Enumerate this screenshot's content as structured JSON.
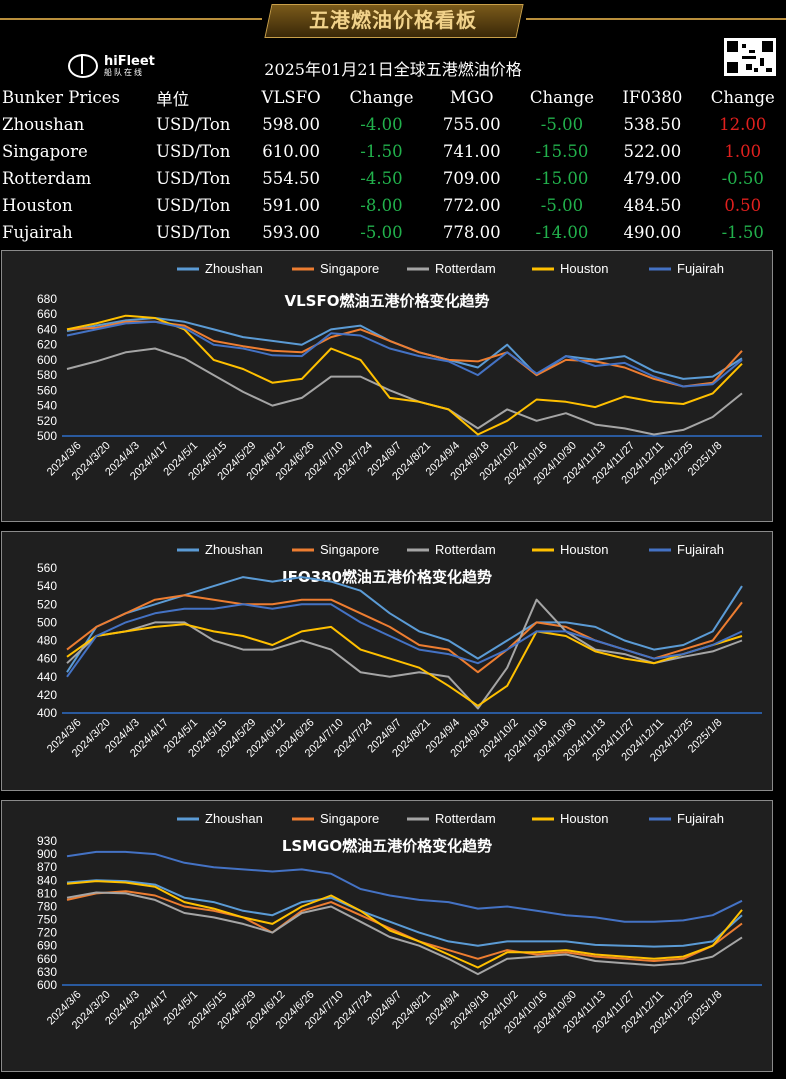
{
  "header": {
    "title": "五港燃油价格看板"
  },
  "logo": {
    "name": "hiFleet",
    "sub": "船队在线"
  },
  "table": {
    "title": "2025年01月21日全球五港燃油价格",
    "headers": [
      "Bunker Prices",
      "单位",
      "VLSFO",
      "Change",
      "MGO",
      "Change",
      "IF0380",
      "Change"
    ],
    "rows": [
      {
        "port": "Zhoushan",
        "unit": "USD/Ton",
        "vlsfo": "598.00",
        "vlsfo_chg": "-4.00",
        "mgo": "755.00",
        "mgo_chg": "-5.00",
        "ifo": "538.50",
        "ifo_chg": "12.00"
      },
      {
        "port": "Singapore",
        "unit": "USD/Ton",
        "vlsfo": "610.00",
        "vlsfo_chg": "-1.50",
        "mgo": "741.00",
        "mgo_chg": "-15.50",
        "ifo": "522.00",
        "ifo_chg": "1.00"
      },
      {
        "port": "Rotterdam",
        "unit": "USD/Ton",
        "vlsfo": "554.50",
        "vlsfo_chg": "-4.50",
        "mgo": "709.00",
        "mgo_chg": "-15.00",
        "ifo": "479.00",
        "ifo_chg": "-0.50"
      },
      {
        "port": "Houston",
        "unit": "USD/Ton",
        "vlsfo": "591.00",
        "vlsfo_chg": "-8.00",
        "mgo": "772.00",
        "mgo_chg": "-5.00",
        "ifo": "484.50",
        "ifo_chg": "0.50"
      },
      {
        "port": "Fujairah",
        "unit": "USD/Ton",
        "vlsfo": "593.00",
        "vlsfo_chg": "-5.00",
        "mgo": "778.00",
        "mgo_chg": "-14.00",
        "ifo": "490.00",
        "ifo_chg": "-1.50"
      }
    ]
  },
  "colors": {
    "Zhoushan": "#5b9bd5",
    "Singapore": "#ed7d31",
    "Rotterdam": "#a5a5a5",
    "Houston": "#ffc000",
    "Fujairah": "#4472c4",
    "gain": "#e0201e",
    "loss": "#22b14c"
  },
  "chart_data": [
    {
      "type": "line",
      "title": "VLSFO燃油五港价格变化趋势",
      "xlabel": "",
      "ylabel": "",
      "ylim": [
        500,
        680
      ],
      "yticks": [
        500,
        520,
        540,
        560,
        580,
        600,
        620,
        640,
        660,
        680
      ],
      "x_ticks": [
        "2024/3/6",
        "2024/3/20",
        "2024/4/3",
        "2024/4/17",
        "2024/5/1",
        "2024/5/15",
        "2024/5/29",
        "2024/6/12",
        "2024/6/26",
        "2024/7/10",
        "2024/7/24",
        "2024/8/7",
        "2024/8/21",
        "2024/9/4",
        "2024/9/18",
        "2024/10/2",
        "2024/10/16",
        "2024/10/30",
        "2024/11/13",
        "2024/11/27",
        "2024/12/11",
        "2024/12/25",
        "2025/1/8"
      ],
      "legend": "top",
      "grid": false,
      "series": [
        {
          "name": "Zhoushan",
          "values": [
            638,
            645,
            652,
            655,
            650,
            640,
            630,
            625,
            620,
            640,
            645,
            625,
            610,
            600,
            590,
            620,
            580,
            605,
            600,
            605,
            585,
            575,
            578,
            602
          ]
        },
        {
          "name": "Singapore",
          "values": [
            640,
            642,
            650,
            650,
            645,
            625,
            618,
            612,
            610,
            630,
            640,
            625,
            610,
            600,
            598,
            610,
            580,
            600,
            598,
            590,
            575,
            565,
            570,
            612
          ]
        },
        {
          "name": "Rotterdam",
          "values": [
            588,
            598,
            610,
            615,
            602,
            580,
            558,
            540,
            550,
            578,
            578,
            560,
            545,
            535,
            510,
            535,
            520,
            530,
            515,
            510,
            502,
            508,
            525,
            556
          ]
        },
        {
          "name": "Houston",
          "values": [
            640,
            648,
            658,
            655,
            640,
            600,
            588,
            570,
            575,
            615,
            600,
            550,
            545,
            535,
            502,
            520,
            548,
            545,
            538,
            552,
            545,
            542,
            556,
            595
          ]
        },
        {
          "name": "Fujairah",
          "values": [
            632,
            640,
            648,
            650,
            642,
            620,
            615,
            606,
            605,
            635,
            632,
            615,
            605,
            598,
            580,
            610,
            582,
            605,
            592,
            596,
            578,
            565,
            568,
            600
          ]
        }
      ]
    },
    {
      "type": "line",
      "title": "IFO380燃油五港价格变化趋势",
      "xlabel": "",
      "ylabel": "",
      "ylim": [
        400,
        560
      ],
      "yticks": [
        400,
        420,
        440,
        460,
        480,
        500,
        520,
        540,
        560
      ],
      "x_ticks": [
        "2024/3/6",
        "2024/3/20",
        "2024/4/3",
        "2024/4/17",
        "2024/5/1",
        "2024/5/15",
        "2024/5/29",
        "2024/6/12",
        "2024/6/26",
        "2024/7/10",
        "2024/7/24",
        "2024/8/7",
        "2024/8/21",
        "2024/9/4",
        "2024/9/18",
        "2024/10/2",
        "2024/10/16",
        "2024/10/30",
        "2024/11/13",
        "2024/11/27",
        "2024/12/11",
        "2024/12/25",
        "2025/1/8"
      ],
      "legend": "top",
      "grid": false,
      "series": [
        {
          "name": "Zhoushan",
          "values": [
            445,
            495,
            510,
            520,
            530,
            540,
            550,
            545,
            550,
            545,
            535,
            510,
            490,
            480,
            460,
            480,
            500,
            500,
            495,
            480,
            470,
            475,
            490,
            540
          ]
        },
        {
          "name": "Singapore",
          "values": [
            470,
            495,
            510,
            525,
            530,
            525,
            520,
            520,
            525,
            525,
            510,
            495,
            475,
            470,
            445,
            470,
            500,
            495,
            480,
            470,
            460,
            470,
            480,
            522
          ]
        },
        {
          "name": "Rotterdam",
          "values": [
            455,
            485,
            490,
            500,
            500,
            480,
            470,
            470,
            480,
            470,
            445,
            440,
            445,
            440,
            405,
            450,
            525,
            490,
            470,
            465,
            455,
            462,
            468,
            480
          ]
        },
        {
          "name": "Houston",
          "values": [
            462,
            485,
            490,
            495,
            498,
            490,
            485,
            475,
            490,
            495,
            470,
            460,
            450,
            430,
            408,
            430,
            490,
            485,
            468,
            460,
            455,
            465,
            475,
            485
          ]
        },
        {
          "name": "Fujairah",
          "values": [
            440,
            485,
            500,
            510,
            515,
            515,
            520,
            515,
            520,
            520,
            500,
            485,
            470,
            465,
            455,
            470,
            490,
            490,
            480,
            470,
            460,
            465,
            475,
            490
          ]
        }
      ]
    },
    {
      "type": "line",
      "title": "LSMGO燃油五港价格变化趋势",
      "xlabel": "",
      "ylabel": "",
      "ylim": [
        600,
        930
      ],
      "yticks": [
        600,
        630,
        660,
        690,
        720,
        750,
        780,
        810,
        840,
        870,
        900,
        930
      ],
      "x_ticks": [
        "2024/3/6",
        "2024/3/20",
        "2024/4/3",
        "2024/4/17",
        "2024/5/1",
        "2024/5/15",
        "2024/5/29",
        "2024/6/12",
        "2024/6/26",
        "2024/7/10",
        "2024/7/24",
        "2024/8/7",
        "2024/8/21",
        "2024/9/4",
        "2024/9/18",
        "2024/10/2",
        "2024/10/16",
        "2024/10/30",
        "2024/11/13",
        "2024/11/27",
        "2024/12/11",
        "2024/12/25",
        "2025/1/8"
      ],
      "legend": "top",
      "grid": false,
      "series": [
        {
          "name": "Zhoushan",
          "values": [
            835,
            840,
            838,
            830,
            800,
            790,
            770,
            760,
            790,
            800,
            770,
            745,
            720,
            700,
            690,
            700,
            700,
            700,
            692,
            690,
            688,
            690,
            700,
            760
          ]
        },
        {
          "name": "Singapore",
          "values": [
            795,
            810,
            815,
            805,
            780,
            770,
            755,
            720,
            770,
            790,
            760,
            730,
            700,
            680,
            660,
            680,
            670,
            675,
            665,
            660,
            655,
            660,
            690,
            741
          ]
        },
        {
          "name": "Rotterdam",
          "values": [
            800,
            812,
            810,
            795,
            765,
            755,
            740,
            720,
            765,
            780,
            745,
            710,
            690,
            660,
            625,
            660,
            665,
            670,
            655,
            650,
            645,
            650,
            665,
            709
          ]
        },
        {
          "name": "Houston",
          "values": [
            832,
            838,
            835,
            825,
            790,
            775,
            755,
            740,
            780,
            805,
            770,
            725,
            700,
            670,
            640,
            675,
            675,
            680,
            670,
            665,
            660,
            665,
            690,
            772
          ]
        },
        {
          "name": "Fujairah",
          "values": [
            895,
            905,
            905,
            900,
            880,
            870,
            865,
            860,
            865,
            855,
            820,
            805,
            795,
            790,
            775,
            780,
            770,
            760,
            755,
            745,
            745,
            748,
            760,
            793
          ]
        }
      ]
    }
  ]
}
